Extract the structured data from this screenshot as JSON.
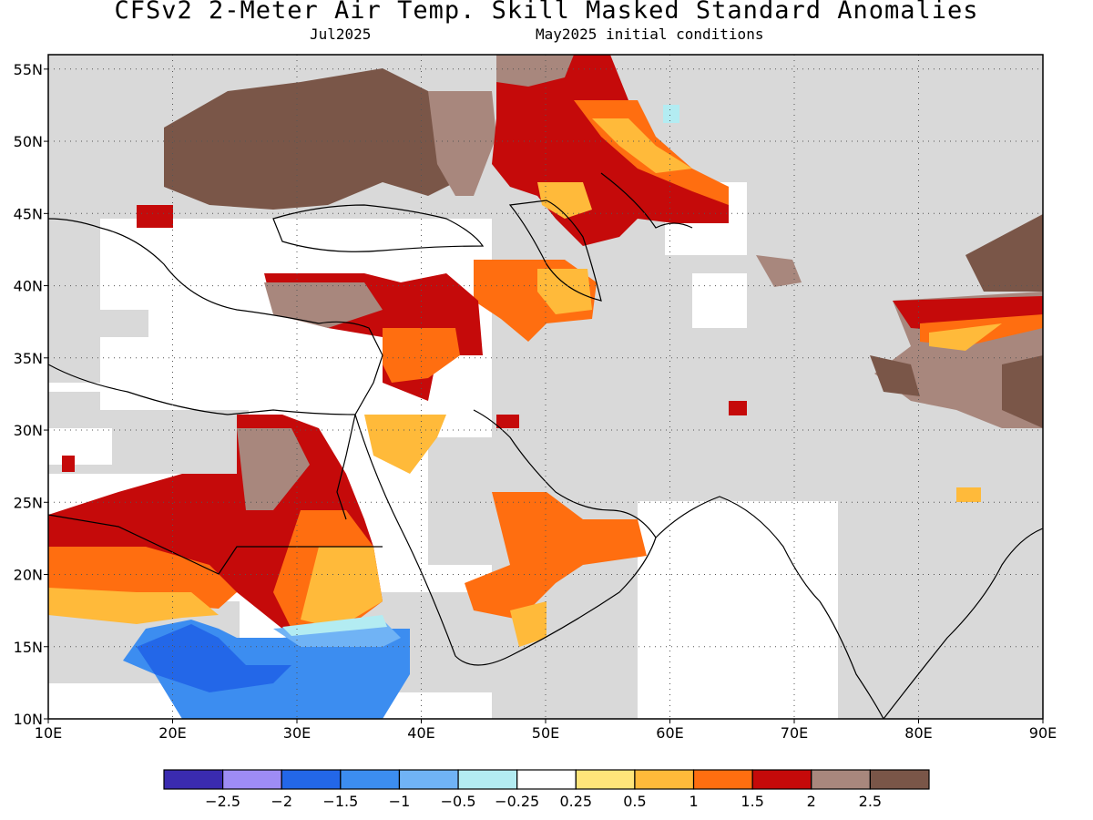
{
  "header": {
    "title": "CFSv2 2-Meter Air Temp. Skill Masked Standard Anomalies",
    "valid_month": "Jul2025",
    "initial_conditions": "May2025 initial conditions"
  },
  "map": {
    "lon_range": [
      10,
      90
    ],
    "lat_range": [
      10,
      56
    ],
    "lon_ticks": [
      "10E",
      "20E",
      "30E",
      "40E",
      "50E",
      "60E",
      "70E",
      "80E",
      "90E"
    ],
    "lat_ticks": [
      "55N",
      "50N",
      "45N",
      "40N",
      "35N",
      "30N",
      "25N",
      "20N",
      "15N",
      "10N"
    ],
    "gridlines": "dotted",
    "masked_color": "#d9d9d9",
    "anomaly_regions": [
      {
        "name": "Eastern Europe / Ukraine",
        "level": "2.5+"
      },
      {
        "name": "Southern Russia / Caspian",
        "level": "1.5-2"
      },
      {
        "name": "Eastern Turkey / Caucasus",
        "level": "1.5-2"
      },
      {
        "name": "Sahara / Sudan",
        "level": "1.5-2"
      },
      {
        "name": "Sahel",
        "level": "-1.5 to -1"
      },
      {
        "name": "Tibetan Plateau",
        "level": "2-2.5"
      },
      {
        "name": "Arabian Peninsula south",
        "level": "1-1.5"
      }
    ]
  },
  "colorbar": {
    "colors": [
      "#3a2bb0",
      "#9e8cf5",
      "#2367e8",
      "#3c8df0",
      "#70b3f5",
      "#b3ecf2",
      "#ffffff",
      "#ffe57a",
      "#ffba3a",
      "#ff6e10",
      "#c50a0a",
      "#a8877d",
      "#7a5648"
    ],
    "labels": [
      "−2.5",
      "−2",
      "−1.5",
      "−1",
      "−0.5",
      "−0.25",
      "0.25",
      "0.5",
      "1",
      "1.5",
      "2",
      "2.5"
    ]
  }
}
